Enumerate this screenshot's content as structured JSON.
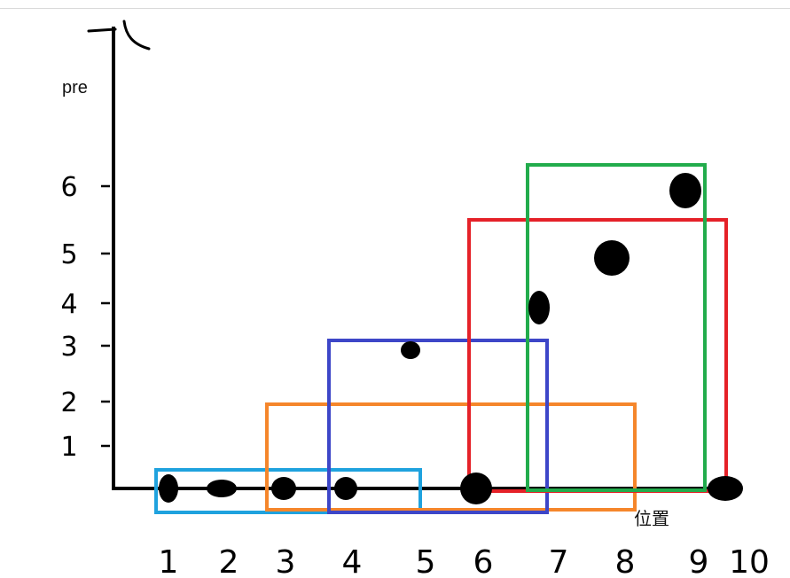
{
  "axes": {
    "ylabel": "pre",
    "xlabel": "位置",
    "x_ticks": [
      "1",
      "2",
      "3",
      "4",
      "5",
      "6",
      "7",
      "8",
      "9",
      "10"
    ],
    "y_ticks": [
      "1",
      "2",
      "3",
      "4",
      "5",
      "6"
    ]
  },
  "points": [
    {
      "position": 1,
      "pre": 0
    },
    {
      "position": 2,
      "pre": 0
    },
    {
      "position": 3,
      "pre": 0
    },
    {
      "position": 4,
      "pre": 0
    },
    {
      "position": 5,
      "pre": 3
    },
    {
      "position": 6,
      "pre": 0
    },
    {
      "position": 7,
      "pre": 4
    },
    {
      "position": 8,
      "pre": 5
    },
    {
      "position": 9,
      "pre": 6
    },
    {
      "position": 10,
      "pre": 0
    }
  ],
  "windows": [
    {
      "color": "#1fa2de",
      "from": 1,
      "to": 4
    },
    {
      "color": "#f5862b",
      "from": 3,
      "to": 8
    },
    {
      "color": "#3d46c8",
      "from": 4,
      "to": 7
    },
    {
      "color": "#e52128",
      "from": 6,
      "to": 10
    },
    {
      "color": "#22ac4c",
      "from": 7,
      "to": 9
    }
  ]
}
